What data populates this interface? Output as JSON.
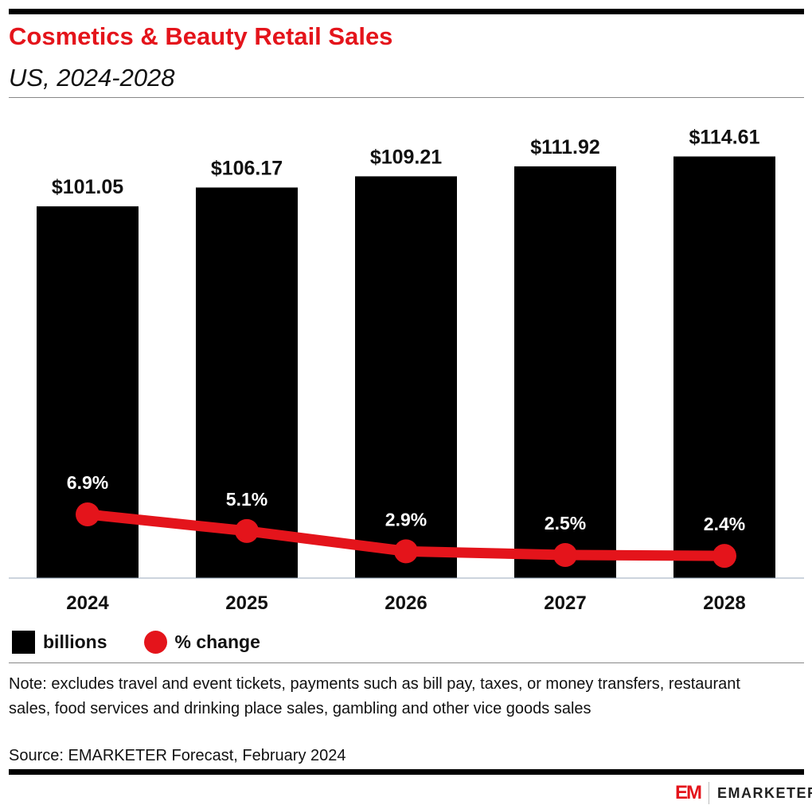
{
  "header": {
    "title": "Cosmetics & Beauty Retail Sales",
    "subtitle": "US, 2024-2028"
  },
  "chart_data": {
    "type": "bar+line",
    "categories": [
      "2024",
      "2025",
      "2026",
      "2027",
      "2028"
    ],
    "series": [
      {
        "name": "billions",
        "type": "bar",
        "values": [
          101.05,
          106.17,
          109.21,
          111.92,
          114.61
        ],
        "labels": [
          "$101.05",
          "$106.17",
          "$109.21",
          "$111.92",
          "$114.61"
        ],
        "color": "#000000"
      },
      {
        "name": "% change",
        "type": "line",
        "values": [
          6.9,
          5.1,
          2.9,
          2.5,
          2.4
        ],
        "labels": [
          "6.9%",
          "5.1%",
          "2.9%",
          "2.5%",
          "2.4%"
        ],
        "color": "#e4141b"
      }
    ],
    "legend": "bottom-left",
    "grid": false
  },
  "legend": {
    "bars": "billions",
    "line": "% change"
  },
  "footer": {
    "note": "Note: excludes travel and event tickets, payments such as bill pay, taxes, or money transfers, restaurant sales, food services and drinking place sales, gambling and other vice goods sales",
    "source": "Source: EMARKETER Forecast, February 2024",
    "logo_mark": "EM",
    "logo_text": "EMARKETER"
  }
}
